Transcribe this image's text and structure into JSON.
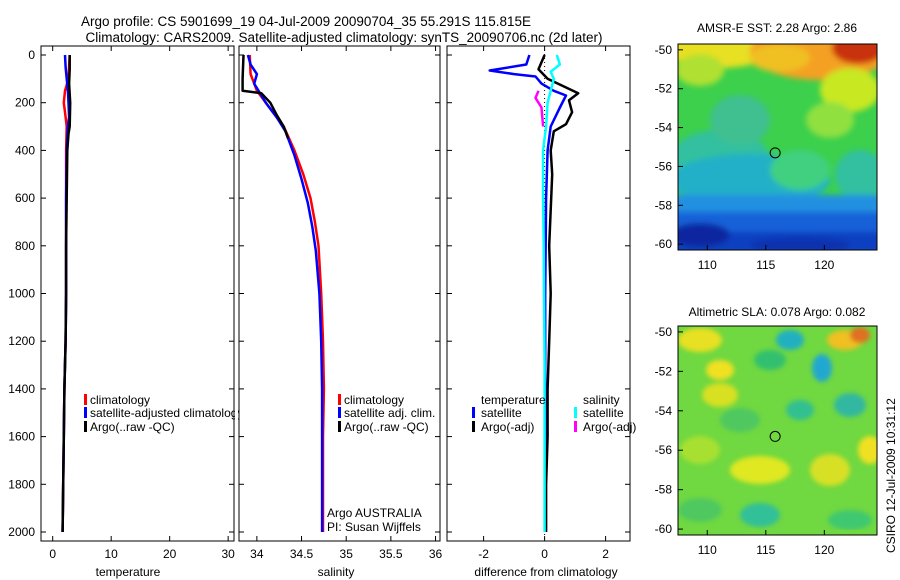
{
  "title": {
    "line1": "Argo profile: CS 5901699_19 04-Jul-2009 20090704_35 55.291S 115.815E",
    "line2": "Climatology: CARS2009. Satellite-adjusted climatology: synTS_20090706.nc (2d later)"
  },
  "colors": {
    "red": "#ff0000",
    "blue": "#0000ff",
    "black": "#000000",
    "cyan": "#00ffff",
    "magenta": "#ff00ff"
  },
  "chart_data": [
    {
      "type": "line",
      "name": "temperature-profile",
      "xlabel": "temperature",
      "xlim": [
        -2,
        31
      ],
      "ylim": [
        0,
        2050
      ],
      "y_reversed": true,
      "xticks": [
        0,
        10,
        20,
        30
      ],
      "yticks": [
        0,
        200,
        400,
        600,
        800,
        1000,
        1200,
        1400,
        1600,
        1800,
        2000
      ],
      "legend": [
        "climatology",
        "satellite-adjusted climatology",
        "Argo(..raw -QC)"
      ],
      "series": [
        {
          "name": "climatology",
          "color": "red",
          "points": [
            [
              2.9,
              0
            ],
            [
              2.8,
              50
            ],
            [
              2.7,
              100
            ],
            [
              2.1,
              150
            ],
            [
              1.9,
              200
            ],
            [
              2.2,
              260
            ],
            [
              2.4,
              300
            ],
            [
              2.3,
              400
            ],
            [
              2.3,
              600
            ],
            [
              2.3,
              800
            ],
            [
              2.3,
              1000
            ],
            [
              2.2,
              1200
            ],
            [
              2.0,
              1400
            ],
            [
              1.9,
              1600
            ],
            [
              1.8,
              1800
            ],
            [
              1.7,
              2000
            ]
          ]
        },
        {
          "name": "satellite-adjusted climatology",
          "color": "blue",
          "points": [
            [
              2.1,
              0
            ],
            [
              2.2,
              50
            ],
            [
              2.4,
              100
            ],
            [
              2.6,
              150
            ],
            [
              2.7,
              200
            ],
            [
              2.8,
              260
            ],
            [
              2.6,
              300
            ],
            [
              2.4,
              400
            ],
            [
              2.3,
              600
            ],
            [
              2.3,
              800
            ],
            [
              2.3,
              1000
            ],
            [
              2.2,
              1200
            ],
            [
              2.0,
              1400
            ],
            [
              1.9,
              1600
            ],
            [
              1.8,
              1800
            ],
            [
              1.7,
              2000
            ]
          ]
        },
        {
          "name": "Argo(..raw -QC)",
          "color": "black",
          "points": [
            [
              2.9,
              0
            ],
            [
              2.9,
              60
            ],
            [
              2.8,
              120
            ],
            [
              3.0,
              200
            ],
            [
              2.9,
              300
            ],
            [
              2.7,
              330
            ],
            [
              2.5,
              400
            ],
            [
              2.4,
              600
            ],
            [
              2.3,
              800
            ],
            [
              2.3,
              1000
            ],
            [
              2.2,
              1200
            ],
            [
              2.0,
              1400
            ],
            [
              1.9,
              1600
            ],
            [
              1.8,
              1800
            ],
            [
              1.7,
              2000
            ]
          ]
        }
      ]
    },
    {
      "type": "line",
      "name": "salinity-profile",
      "xlabel": "salinity",
      "xlim": [
        33.8,
        36.05
      ],
      "ylim": [
        0,
        2050
      ],
      "y_reversed": true,
      "xticks": [
        34,
        34.5,
        35,
        35.5,
        36
      ],
      "legend": [
        "climatology",
        "satellite adj. clim.",
        "Argo(..raw -QC)"
      ],
      "annotation": [
        "Argo AUSTRALIA",
        "PI: Susan Wijffels"
      ],
      "series": [
        {
          "name": "climatology",
          "color": "red",
          "points": [
            [
              33.92,
              0
            ],
            [
              33.93,
              80
            ],
            [
              34.0,
              150
            ],
            [
              34.12,
              210
            ],
            [
              34.2,
              250
            ],
            [
              34.3,
              300
            ],
            [
              34.42,
              400
            ],
            [
              34.52,
              500
            ],
            [
              34.6,
              600
            ],
            [
              34.65,
              700
            ],
            [
              34.69,
              800
            ],
            [
              34.72,
              1000
            ],
            [
              34.74,
              1200
            ],
            [
              34.75,
              1400
            ],
            [
              34.74,
              1600
            ],
            [
              34.74,
              1800
            ],
            [
              34.74,
              2000
            ]
          ]
        },
        {
          "name": "satellite adj. clim.",
          "color": "blue",
          "points": [
            [
              33.9,
              0
            ],
            [
              33.93,
              40
            ],
            [
              34.0,
              80
            ],
            [
              33.97,
              120
            ],
            [
              34.1,
              200
            ],
            [
              34.22,
              260
            ],
            [
              34.32,
              320
            ],
            [
              34.42,
              420
            ],
            [
              34.5,
              520
            ],
            [
              34.57,
              620
            ],
            [
              34.62,
              720
            ],
            [
              34.66,
              820
            ],
            [
              34.7,
              1000
            ],
            [
              34.72,
              1200
            ],
            [
              34.73,
              1400
            ],
            [
              34.73,
              1600
            ],
            [
              34.73,
              1800
            ],
            [
              34.73,
              2000
            ]
          ]
        },
        {
          "name": "Argo(..raw -QC)",
          "color": "black",
          "points": [
            [
              33.85,
              0
            ],
            [
              33.84,
              100
            ],
            [
              33.84,
              150
            ],
            [
              34.05,
              160
            ],
            [
              34.15,
              200
            ],
            [
              34.22,
              250
            ],
            [
              34.3,
              300
            ],
            [
              34.35,
              350
            ]
          ]
        }
      ]
    },
    {
      "type": "line",
      "name": "difference-profile",
      "xlabel": "difference from climatology",
      "xlim": [
        -3.2,
        2.8
      ],
      "ylim": [
        0,
        2050
      ],
      "y_reversed": true,
      "xticks": [
        -2,
        0,
        2
      ],
      "legend_temperature_header": "temperature",
      "legend_salinity_header": "salinity",
      "legend_temperature": [
        "satellite",
        "Argo(-adj)"
      ],
      "legend_salinity": [
        "satellite",
        "Argo(-adj)"
      ],
      "series": [
        {
          "name": "temperature satellite",
          "color": "blue",
          "points": [
            [
              -0.5,
              0
            ],
            [
              -0.6,
              40
            ],
            [
              -1.8,
              65
            ],
            [
              -1.0,
              80
            ],
            [
              -0.3,
              90
            ],
            [
              -0.1,
              120
            ],
            [
              0.3,
              150
            ],
            [
              0.7,
              170
            ],
            [
              0.5,
              220
            ],
            [
              0.2,
              300
            ],
            [
              0.1,
              400
            ],
            [
              0.05,
              600
            ],
            [
              0.02,
              1000
            ],
            [
              0.02,
              1500
            ],
            [
              0.02,
              2000
            ]
          ]
        },
        {
          "name": "temperature Argo(-adj)",
          "color": "black",
          "points": [
            [
              0.0,
              0
            ],
            [
              -0.2,
              60
            ],
            [
              0.1,
              100
            ],
            [
              0.6,
              130
            ],
            [
              1.1,
              160
            ],
            [
              0.8,
              190
            ],
            [
              0.9,
              240
            ],
            [
              0.7,
              290
            ],
            [
              0.3,
              320
            ],
            [
              0.2,
              400
            ],
            [
              0.25,
              500
            ],
            [
              0.2,
              650
            ],
            [
              0.15,
              800
            ],
            [
              0.2,
              1000
            ],
            [
              0.15,
              1200
            ],
            [
              0.1,
              1400
            ],
            [
              0.1,
              1600
            ],
            [
              0.05,
              1800
            ],
            [
              0.05,
              2000
            ]
          ]
        },
        {
          "name": "salinity satellite",
          "color": "cyan",
          "points": [
            [
              0.4,
              0
            ],
            [
              0.5,
              40
            ],
            [
              0.2,
              70
            ],
            [
              0.3,
              100
            ],
            [
              0.2,
              150
            ],
            [
              0.1,
              200
            ],
            [
              0.05,
              300
            ],
            [
              -0.05,
              400
            ],
            [
              -0.05,
              600
            ],
            [
              -0.03,
              800
            ],
            [
              -0.02,
              1000
            ],
            [
              0.0,
              1300
            ],
            [
              0.0,
              2000
            ]
          ]
        },
        {
          "name": "salinity Argo(-adj)",
          "color": "magenta",
          "points": [
            [
              -0.2,
              150
            ],
            [
              -0.3,
              180
            ],
            [
              -0.1,
              220
            ],
            [
              -0.05,
              300
            ]
          ]
        }
      ]
    },
    {
      "type": "heatmap",
      "name": "amsr-sst-map",
      "title": "AMSR-E SST: 2.28 Argo: 2.86",
      "xlim": [
        107.5,
        124.5
      ],
      "ylim": [
        -60.3,
        -49.7
      ],
      "xticks": [
        110,
        115,
        120
      ],
      "yticks": [
        -50,
        -52,
        -54,
        -56,
        -58,
        -60
      ],
      "marker": [
        115.8,
        -55.3
      ]
    },
    {
      "type": "heatmap",
      "name": "altimetric-sla-map",
      "title": "Altimetric SLA: 0.078 Argo: 0.082",
      "xlim": [
        107.5,
        124.5
      ],
      "ylim": [
        -60.3,
        -49.7
      ],
      "xticks": [
        110,
        115,
        120
      ],
      "yticks": [
        -50,
        -52,
        -54,
        -56,
        -58,
        -60
      ],
      "marker": [
        115.8,
        -55.3
      ]
    }
  ],
  "footer": "CSIRO 12-Jul-2009 10:31:12"
}
